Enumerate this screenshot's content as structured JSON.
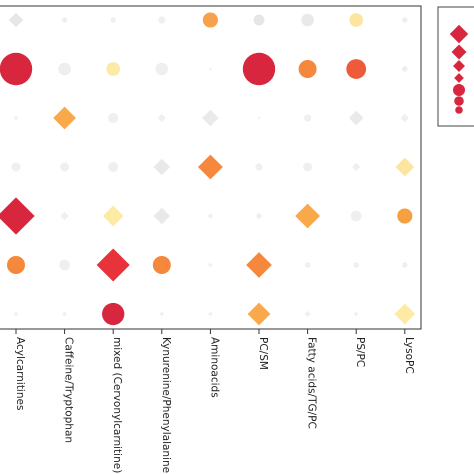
{
  "chart_data": {
    "type": "scatter",
    "categories": [
      "Acylcarnitines",
      "Caffeine/Tryptophan",
      "mixed (Cervonylcarnitine)",
      "Kynurenine/Phenylalanine",
      "Aminoacids",
      "PC/SM",
      "Fatty acids/TG/PC",
      "PS/PC",
      "LysoPC"
    ],
    "rows": 7,
    "grid": false,
    "legend_position": "right",
    "legend_entries": [
      {
        "shape": "diamond",
        "color": "#d7263d"
      },
      {
        "shape": "diamond",
        "color": "#d7263d"
      },
      {
        "shape": "diamond",
        "color": "#d7263d"
      },
      {
        "shape": "diamond",
        "color": "#d7263d"
      },
      {
        "shape": "circle",
        "color": "#d7263d"
      },
      {
        "shape": "circle",
        "color": "#d7263d"
      },
      {
        "shape": "circle",
        "color": "#d7263d"
      }
    ],
    "points": [
      {
        "col": 0,
        "row": 0,
        "shape": "diamond",
        "color": "#e6e6e6",
        "size": 0.35
      },
      {
        "col": 1,
        "row": 0,
        "shape": "circle",
        "color": "#efefef",
        "size": 0.15
      },
      {
        "col": 2,
        "row": 0,
        "shape": "circle",
        "color": "#efefef",
        "size": 0.15
      },
      {
        "col": 3,
        "row": 0,
        "shape": "circle",
        "color": "#efefef",
        "size": 0.2
      },
      {
        "col": 4,
        "row": 0,
        "shape": "circle",
        "color": "#f8a14a",
        "size": 0.42
      },
      {
        "col": 5,
        "row": 0,
        "shape": "circle",
        "color": "#e6e6e6",
        "size": 0.3
      },
      {
        "col": 6,
        "row": 0,
        "shape": "circle",
        "color": "#e9e9e9",
        "size": 0.35
      },
      {
        "col": 7,
        "row": 0,
        "shape": "circle",
        "color": "#fde5a0",
        "size": 0.38
      },
      {
        "col": 8,
        "row": 0,
        "shape": "circle",
        "color": "#eeeeee",
        "size": 0.15
      },
      {
        "col": 0,
        "row": 1,
        "shape": "circle",
        "color": "#d7263d",
        "size": 0.9
      },
      {
        "col": 1,
        "row": 1,
        "shape": "circle",
        "color": "#eeeeee",
        "size": 0.35
      },
      {
        "col": 2,
        "row": 1,
        "shape": "circle",
        "color": "#fdeaa5",
        "size": 0.38
      },
      {
        "col": 3,
        "row": 1,
        "shape": "circle",
        "color": "#efefef",
        "size": 0.35
      },
      {
        "col": 4,
        "row": 1,
        "shape": "circle",
        "color": "#f2f2f2",
        "size": 0.08
      },
      {
        "col": 5,
        "row": 1,
        "shape": "circle",
        "color": "#d7263d",
        "size": 0.9
      },
      {
        "col": 6,
        "row": 1,
        "shape": "circle",
        "color": "#f5883c",
        "size": 0.5
      },
      {
        "col": 7,
        "row": 1,
        "shape": "circle",
        "color": "#ef5a3a",
        "size": 0.55
      },
      {
        "col": 8,
        "row": 1,
        "shape": "circle",
        "color": "#eeeeee",
        "size": 0.15
      },
      {
        "col": 0,
        "row": 2,
        "shape": "circle",
        "color": "#efefef",
        "size": 0.1
      },
      {
        "col": 1,
        "row": 2,
        "shape": "diamond",
        "color": "#f9a84a",
        "size": 0.55
      },
      {
        "col": 2,
        "row": 2,
        "shape": "circle",
        "color": "#efefef",
        "size": 0.28
      },
      {
        "col": 3,
        "row": 2,
        "shape": "diamond",
        "color": "#efefef",
        "size": 0.2
      },
      {
        "col": 4,
        "row": 2,
        "shape": "diamond",
        "color": "#eaeaea",
        "size": 0.4
      },
      {
        "col": 5,
        "row": 2,
        "shape": "circle",
        "color": "#f0f0f0",
        "size": 0.05
      },
      {
        "col": 6,
        "row": 2,
        "shape": "circle",
        "color": "#efefef",
        "size": 0.2
      },
      {
        "col": 7,
        "row": 2,
        "shape": "diamond",
        "color": "#e9e9e9",
        "size": 0.35
      },
      {
        "col": 8,
        "row": 2,
        "shape": "diamond",
        "color": "#efefef",
        "size": 0.2
      },
      {
        "col": 0,
        "row": 3,
        "shape": "circle",
        "color": "#efefef",
        "size": 0.25
      },
      {
        "col": 1,
        "row": 3,
        "shape": "circle",
        "color": "#efefef",
        "size": 0.25
      },
      {
        "col": 2,
        "row": 3,
        "shape": "circle",
        "color": "#efefef",
        "size": 0.28
      },
      {
        "col": 3,
        "row": 3,
        "shape": "diamond",
        "color": "#e9e9e9",
        "size": 0.4
      },
      {
        "col": 4,
        "row": 3,
        "shape": "diamond",
        "color": "#f5883c",
        "size": 0.6
      },
      {
        "col": 5,
        "row": 3,
        "shape": "circle",
        "color": "#efefef",
        "size": 0.2
      },
      {
        "col": 6,
        "row": 3,
        "shape": "circle",
        "color": "#efefef",
        "size": 0.25
      },
      {
        "col": 7,
        "row": 3,
        "shape": "diamond",
        "color": "#efefef",
        "size": 0.2
      },
      {
        "col": 8,
        "row": 3,
        "shape": "diamond",
        "color": "#fde5a0",
        "size": 0.45
      },
      {
        "col": 0,
        "row": 4,
        "shape": "diamond",
        "color": "#d7263d",
        "size": 0.9
      },
      {
        "col": 1,
        "row": 4,
        "shape": "diamond",
        "color": "#efefef",
        "size": 0.2
      },
      {
        "col": 2,
        "row": 4,
        "shape": "diamond",
        "color": "#fdeaa5",
        "size": 0.5
      },
      {
        "col": 3,
        "row": 4,
        "shape": "diamond",
        "color": "#e9e9e9",
        "size": 0.4
      },
      {
        "col": 4,
        "row": 4,
        "shape": "diamond",
        "color": "#efefef",
        "size": 0.12
      },
      {
        "col": 5,
        "row": 4,
        "shape": "circle",
        "color": "#efefef",
        "size": 0.15
      },
      {
        "col": 6,
        "row": 4,
        "shape": "diamond",
        "color": "#f9a84a",
        "size": 0.6
      },
      {
        "col": 7,
        "row": 4,
        "shape": "circle",
        "color": "#efefef",
        "size": 0.3
      },
      {
        "col": 8,
        "row": 4,
        "shape": "circle",
        "color": "#f5a142",
        "size": 0.42
      },
      {
        "col": 0,
        "row": 5,
        "shape": "circle",
        "color": "#f5883c",
        "size": 0.5
      },
      {
        "col": 1,
        "row": 5,
        "shape": "circle",
        "color": "#efefef",
        "size": 0.3
      },
      {
        "col": 2,
        "row": 5,
        "shape": "diamond",
        "color": "#e8333a",
        "size": 0.8
      },
      {
        "col": 3,
        "row": 5,
        "shape": "circle",
        "color": "#f5883c",
        "size": 0.5
      },
      {
        "col": 4,
        "row": 5,
        "shape": "circle",
        "color": "#efefef",
        "size": 0.1
      },
      {
        "col": 5,
        "row": 5,
        "shape": "diamond",
        "color": "#f5883c",
        "size": 0.62
      },
      {
        "col": 6,
        "row": 5,
        "shape": "circle",
        "color": "#efefef",
        "size": 0.15
      },
      {
        "col": 7,
        "row": 5,
        "shape": "circle",
        "color": "#efefef",
        "size": 0.15
      },
      {
        "col": 8,
        "row": 5,
        "shape": "circle",
        "color": "#efefef",
        "size": 0.15
      },
      {
        "col": 0,
        "row": 6,
        "shape": "circle",
        "color": "#efefef",
        "size": 0.1
      },
      {
        "col": 1,
        "row": 6,
        "shape": "circle",
        "color": "#efefef",
        "size": 0.1
      },
      {
        "col": 2,
        "row": 6,
        "shape": "circle",
        "color": "#d7263d",
        "size": 0.62
      },
      {
        "col": 3,
        "row": 6,
        "shape": "circle",
        "color": "#efefef",
        "size": 0.1
      },
      {
        "col": 4,
        "row": 6,
        "shape": "circle",
        "color": "#efefef",
        "size": 0.1
      },
      {
        "col": 5,
        "row": 6,
        "shape": "diamond",
        "color": "#f9a84a",
        "size": 0.55
      },
      {
        "col": 6,
        "row": 6,
        "shape": "diamond",
        "color": "#efefef",
        "size": 0.15
      },
      {
        "col": 7,
        "row": 6,
        "shape": "circle",
        "color": "#efefef",
        "size": 0.1
      },
      {
        "col": 8,
        "row": 6,
        "shape": "diamond",
        "color": "#fdeaa5",
        "size": 0.5
      }
    ]
  }
}
